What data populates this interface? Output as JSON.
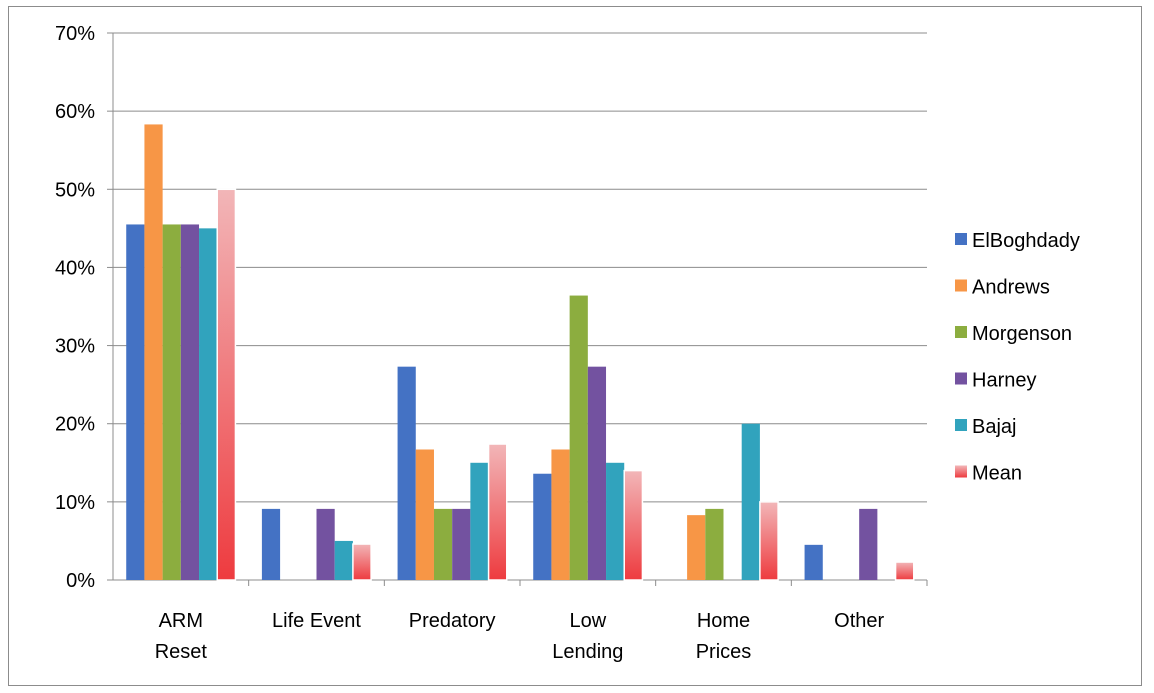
{
  "chart_data": {
    "type": "bar",
    "categories": [
      [
        "ARM",
        "Reset"
      ],
      [
        "Life Event"
      ],
      [
        "Predatory"
      ],
      [
        "Low",
        "Lending"
      ],
      [
        "Home",
        "Prices"
      ],
      [
        "Other"
      ]
    ],
    "series": [
      {
        "name": "ElBoghdady",
        "color": "#4472c4",
        "values": [
          45.5,
          9.1,
          27.3,
          13.6,
          0,
          4.5
        ]
      },
      {
        "name": "Andrews",
        "color": "#f79646",
        "values": [
          58.3,
          0,
          16.7,
          16.7,
          8.3,
          0
        ]
      },
      {
        "name": "Morgenson",
        "color": "#8cad3f",
        "values": [
          45.5,
          0,
          9.1,
          36.4,
          9.1,
          0
        ]
      },
      {
        "name": "Harney",
        "color": "#7352a0",
        "values": [
          45.5,
          9.1,
          9.1,
          27.3,
          0,
          9.1
        ]
      },
      {
        "name": "Bajaj",
        "color": "#31a3bd",
        "values": [
          45.0,
          5.0,
          15.0,
          15.0,
          20.0,
          0
        ]
      },
      {
        "name": "Mean",
        "color": "#f07c80",
        "values": [
          50.0,
          4.6,
          17.4,
          14.0,
          10.0,
          2.3
        ]
      }
    ],
    "ylim": [
      0,
      70
    ],
    "yticks": [
      "0%",
      "10%",
      "20%",
      "30%",
      "40%",
      "50%",
      "60%",
      "70%"
    ],
    "grid": true,
    "legend_position": "right"
  }
}
